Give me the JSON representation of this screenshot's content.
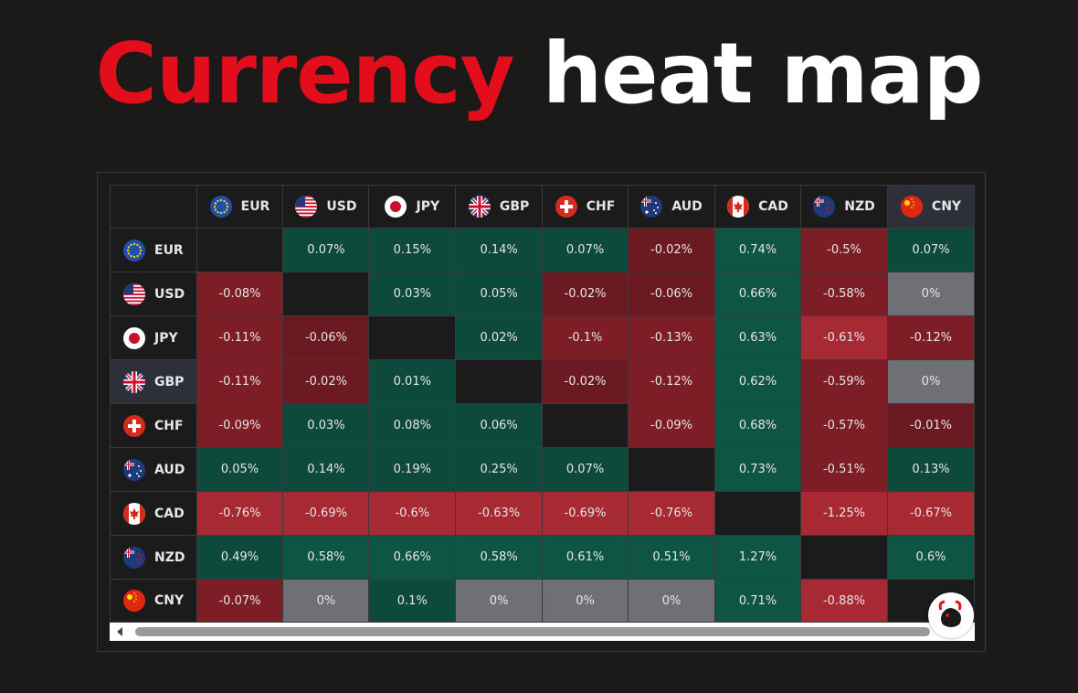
{
  "title": {
    "part1": "Currency",
    "part2": "heat map"
  },
  "colors": {
    "accent_red": "#e30d1b",
    "positive": "#0f5544",
    "negative": "#7d1d26",
    "strong_negative": "#a62934",
    "neutral": "#6e7076"
  },
  "currencies": [
    {
      "code": "EUR",
      "flag": "eu-flag-icon"
    },
    {
      "code": "USD",
      "flag": "us-flag-icon"
    },
    {
      "code": "JPY",
      "flag": "jp-flag-icon"
    },
    {
      "code": "GBP",
      "flag": "gb-flag-icon"
    },
    {
      "code": "CHF",
      "flag": "ch-flag-icon"
    },
    {
      "code": "AUD",
      "flag": "au-flag-icon"
    },
    {
      "code": "CAD",
      "flag": "ca-flag-icon"
    },
    {
      "code": "NZD",
      "flag": "nz-flag-icon"
    },
    {
      "code": "CNY",
      "flag": "cn-flag-icon"
    }
  ],
  "matrix": [
    [
      "",
      "0.07%",
      "0.15%",
      "0.14%",
      "0.07%",
      "-0.02%",
      "0.74%",
      "-0.5%",
      "0.07%"
    ],
    [
      "-0.08%",
      "",
      "0.03%",
      "0.05%",
      "-0.02%",
      "-0.06%",
      "0.66%",
      "-0.58%",
      "0%"
    ],
    [
      "-0.11%",
      "-0.06%",
      "",
      "0.02%",
      "-0.1%",
      "-0.13%",
      "0.63%",
      "-0.61%",
      "-0.12%"
    ],
    [
      "-0.11%",
      "-0.02%",
      "0.01%",
      "",
      "-0.02%",
      "-0.12%",
      "0.62%",
      "-0.59%",
      "0%"
    ],
    [
      "-0.09%",
      "0.03%",
      "0.08%",
      "0.06%",
      "",
      "-0.09%",
      "0.68%",
      "-0.57%",
      "-0.01%"
    ],
    [
      "0.05%",
      "0.14%",
      "0.19%",
      "0.25%",
      "0.07%",
      "",
      "0.73%",
      "-0.51%",
      "0.13%"
    ],
    [
      "-0.76%",
      "-0.69%",
      "-0.6%",
      "-0.63%",
      "-0.69%",
      "-0.76%",
      "",
      "-1.25%",
      "-0.67%"
    ],
    [
      "0.49%",
      "0.58%",
      "0.66%",
      "0.58%",
      "0.61%",
      "0.51%",
      "1.27%",
      "",
      "0.6%"
    ],
    [
      "-0.07%",
      "0%",
      "0.1%",
      "0%",
      "0%",
      "0%",
      "0.71%",
      "-0.88%",
      ""
    ]
  ],
  "highlight": {
    "row": "GBP",
    "column": "CNY"
  },
  "logo": "bull-logo-icon"
}
